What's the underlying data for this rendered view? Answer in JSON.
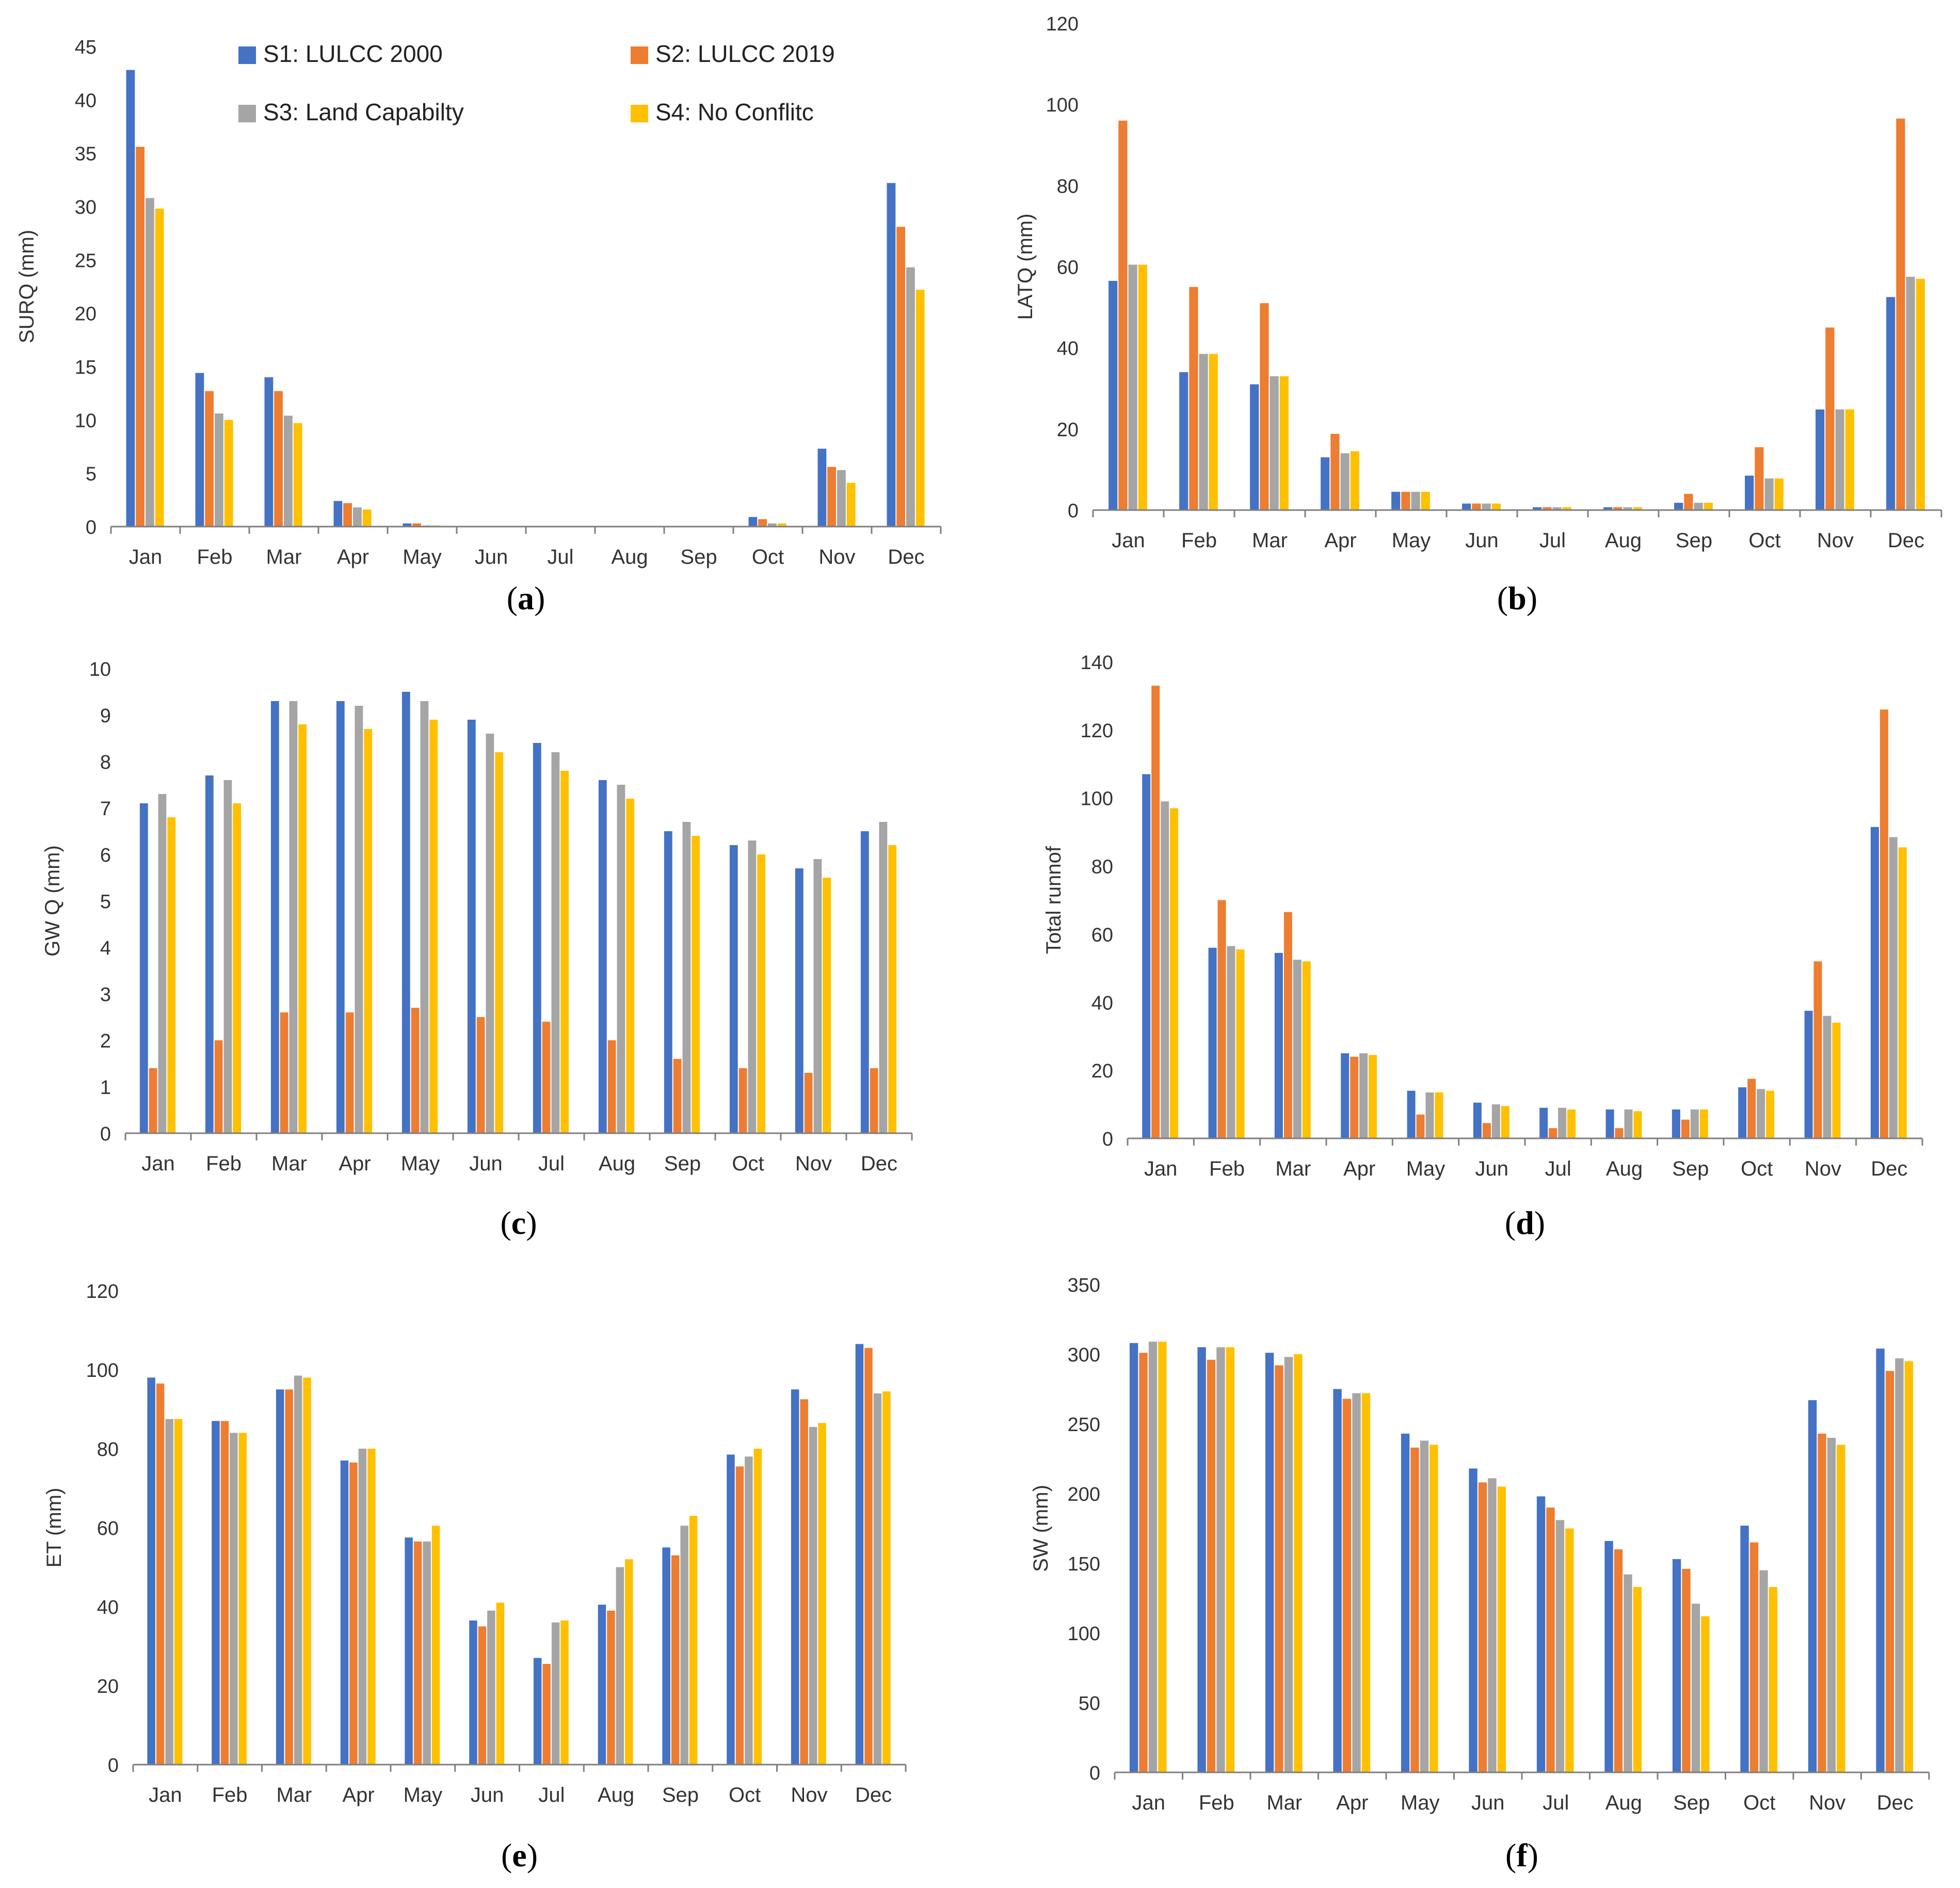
{
  "legend": [
    {
      "name": "S1: LULCC 2000",
      "color": "#4472C4"
    },
    {
      "name": "S2: LULCC 2019",
      "color": "#ED7D31"
    },
    {
      "name": "S3: Land Capabilty",
      "color": "#A5A5A5"
    },
    {
      "name": "S4: No Conflitc",
      "color": "#FFC000"
    }
  ],
  "chart_data": [
    {
      "type": "bar",
      "panel": "a",
      "ylabel": "SURQ (mm)",
      "ylim": [
        0,
        45
      ],
      "yticks": [
        0,
        5,
        10,
        15,
        20,
        25,
        30,
        35,
        40,
        45
      ],
      "categories": [
        "Jan",
        "Feb",
        "Mar",
        "Apr",
        "May",
        "Jun",
        "Jul",
        "Aug",
        "Sep",
        "Oct",
        "Nov",
        "Dec"
      ],
      "series": [
        {
          "name": "S1: LULCC 2000",
          "values": [
            42.8,
            14.4,
            14.0,
            2.4,
            0.3,
            0,
            0,
            0,
            0.05,
            0.9,
            7.3,
            32.2
          ]
        },
        {
          "name": "S2: LULCC 2019",
          "values": [
            35.6,
            12.7,
            12.7,
            2.2,
            0.3,
            0,
            0,
            0,
            0.05,
            0.7,
            5.6,
            28.1
          ]
        },
        {
          "name": "S3: Land Capabilty",
          "values": [
            30.8,
            10.6,
            10.4,
            1.8,
            0.1,
            0,
            0,
            0,
            0.05,
            0.3,
            5.3,
            24.3
          ]
        },
        {
          "name": "S4: No Conflitc",
          "values": [
            29.8,
            10.0,
            9.7,
            1.6,
            0.1,
            0,
            0,
            0,
            0.05,
            0.3,
            4.1,
            22.2
          ]
        }
      ]
    },
    {
      "type": "bar",
      "panel": "b",
      "ylabel": "LATQ (mm)",
      "ylim": [
        0,
        120
      ],
      "yticks": [
        0,
        20,
        40,
        60,
        80,
        100,
        120
      ],
      "categories": [
        "Jan",
        "Feb",
        "Mar",
        "Apr",
        "May",
        "Jun",
        "Jul",
        "Aug",
        "Sep",
        "Oct",
        "Nov",
        "Dec"
      ],
      "series": [
        {
          "name": "S1: LULCC 2000",
          "values": [
            56.5,
            34.0,
            31.0,
            13.0,
            4.5,
            1.6,
            0.7,
            0.7,
            1.8,
            8.5,
            24.8,
            52.5
          ]
        },
        {
          "name": "S2: LULCC 2019",
          "values": [
            96.0,
            55.0,
            51.0,
            18.8,
            4.5,
            1.6,
            0.7,
            0.7,
            4.0,
            15.5,
            45.0,
            96.5
          ]
        },
        {
          "name": "S3: Land Capabilty",
          "values": [
            60.5,
            38.5,
            33.0,
            14.0,
            4.5,
            1.6,
            0.7,
            0.7,
            1.8,
            7.8,
            24.8,
            57.5
          ]
        },
        {
          "name": "S4: No Conflitc",
          "values": [
            60.5,
            38.5,
            33.0,
            14.5,
            4.5,
            1.6,
            0.7,
            0.7,
            1.8,
            7.8,
            24.8,
            57.0
          ]
        }
      ]
    },
    {
      "type": "bar",
      "panel": "c",
      "ylabel": "GW Q (mm)",
      "ylim": [
        0,
        10
      ],
      "yticks": [
        0,
        1,
        2,
        3,
        4,
        5,
        6,
        7,
        8,
        9,
        10
      ],
      "categories": [
        "Jan",
        "Feb",
        "Mar",
        "Apr",
        "May",
        "Jun",
        "Jul",
        "Aug",
        "Sep",
        "Oct",
        "Nov",
        "Dec"
      ],
      "series": [
        {
          "name": "S1: LULCC 2000",
          "values": [
            7.1,
            7.7,
            9.3,
            9.3,
            9.5,
            8.9,
            8.4,
            7.6,
            6.5,
            6.2,
            5.7,
            6.5
          ]
        },
        {
          "name": "S2: LULCC 2019",
          "values": [
            1.4,
            2.0,
            2.6,
            2.6,
            2.7,
            2.5,
            2.4,
            2.0,
            1.6,
            1.4,
            1.3,
            1.4
          ]
        },
        {
          "name": "S3: Land Capabilty",
          "values": [
            7.3,
            7.6,
            9.3,
            9.2,
            9.3,
            8.6,
            8.2,
            7.5,
            6.7,
            6.3,
            5.9,
            6.7
          ]
        },
        {
          "name": "S4: No Conflitc",
          "values": [
            6.8,
            7.1,
            8.8,
            8.7,
            8.9,
            8.2,
            7.8,
            7.2,
            6.4,
            6.0,
            5.5,
            6.2
          ]
        }
      ]
    },
    {
      "type": "bar",
      "panel": "d",
      "ylabel": "Total runnof",
      "ylim": [
        0,
        140
      ],
      "yticks": [
        0,
        20,
        40,
        60,
        80,
        100,
        120,
        140
      ],
      "categories": [
        "Jan",
        "Feb",
        "Mar",
        "Apr",
        "May",
        "Jun",
        "Jul",
        "Aug",
        "Sep",
        "Oct",
        "Nov",
        "Dec"
      ],
      "series": [
        {
          "name": "S1: LULCC 2000",
          "values": [
            107.0,
            56.0,
            54.5,
            25.0,
            14.0,
            10.5,
            9.0,
            8.5,
            8.5,
            15.0,
            37.5,
            91.5
          ]
        },
        {
          "name": "S2: LULCC 2019",
          "values": [
            133.0,
            70.0,
            66.5,
            24.0,
            7.0,
            4.5,
            3.0,
            3.0,
            5.5,
            17.5,
            52.0,
            126.0
          ]
        },
        {
          "name": "S3: Land Capabilty",
          "values": [
            99.0,
            56.5,
            52.5,
            25.0,
            13.5,
            10.0,
            9.0,
            8.5,
            8.5,
            14.5,
            36.0,
            88.5
          ]
        },
        {
          "name": "S4: No Conflitc",
          "values": [
            97.0,
            55.5,
            52.0,
            24.5,
            13.5,
            9.5,
            8.5,
            8.0,
            8.5,
            14.0,
            34.0,
            85.5
          ]
        }
      ]
    },
    {
      "type": "bar",
      "panel": "e",
      "ylabel": "ET (mm)",
      "ylim": [
        0,
        120
      ],
      "yticks": [
        0,
        20,
        40,
        60,
        80,
        100,
        120
      ],
      "categories": [
        "Jan",
        "Feb",
        "Mar",
        "Apr",
        "May",
        "Jun",
        "Jul",
        "Aug",
        "Sep",
        "Oct",
        "Nov",
        "Dec"
      ],
      "series": [
        {
          "name": "S1: LULCC 2000",
          "values": [
            98.0,
            87.0,
            95.0,
            77.0,
            57.5,
            36.5,
            27.0,
            40.5,
            55.0,
            78.5,
            95.0,
            106.5
          ]
        },
        {
          "name": "S2: LULCC 2019",
          "values": [
            96.5,
            87.0,
            95.0,
            76.5,
            56.5,
            35.0,
            25.5,
            39.0,
            53.0,
            75.5,
            92.5,
            105.5
          ]
        },
        {
          "name": "S3: Land Capabilty",
          "values": [
            87.5,
            84.0,
            98.5,
            80.0,
            56.5,
            39.0,
            36.0,
            50.0,
            60.5,
            78.0,
            85.5,
            94.0
          ]
        },
        {
          "name": "S4: No Conflitc",
          "values": [
            87.5,
            84.0,
            98.0,
            80.0,
            60.5,
            41.0,
            36.5,
            52.0,
            63.0,
            80.0,
            86.5,
            94.5
          ]
        }
      ]
    },
    {
      "type": "bar",
      "panel": "f",
      "ylabel": "SW (mm)",
      "ylim": [
        0,
        350
      ],
      "yticks": [
        0,
        50,
        100,
        150,
        200,
        250,
        300,
        350
      ],
      "categories": [
        "Jan",
        "Feb",
        "Mar",
        "Apr",
        "May",
        "Jun",
        "Jul",
        "Aug",
        "Sep",
        "Oct",
        "Nov",
        "Dec"
      ],
      "series": [
        {
          "name": "S1: LULCC 2000",
          "values": [
            308,
            305,
            301,
            275,
            243,
            218,
            198,
            166,
            153,
            177,
            267,
            304
          ]
        },
        {
          "name": "S2: LULCC 2019",
          "values": [
            301,
            296,
            292,
            268,
            233,
            208,
            190,
            160,
            146,
            165,
            243,
            288
          ]
        },
        {
          "name": "S3: Land Capabilty",
          "values": [
            309,
            305,
            298,
            272,
            238,
            211,
            181,
            142,
            121,
            145,
            240,
            297
          ]
        },
        {
          "name": "S4: No Conflitc",
          "values": [
            309,
            305,
            300,
            272,
            235,
            205,
            175,
            133,
            112,
            133,
            235,
            295
          ]
        }
      ]
    }
  ]
}
